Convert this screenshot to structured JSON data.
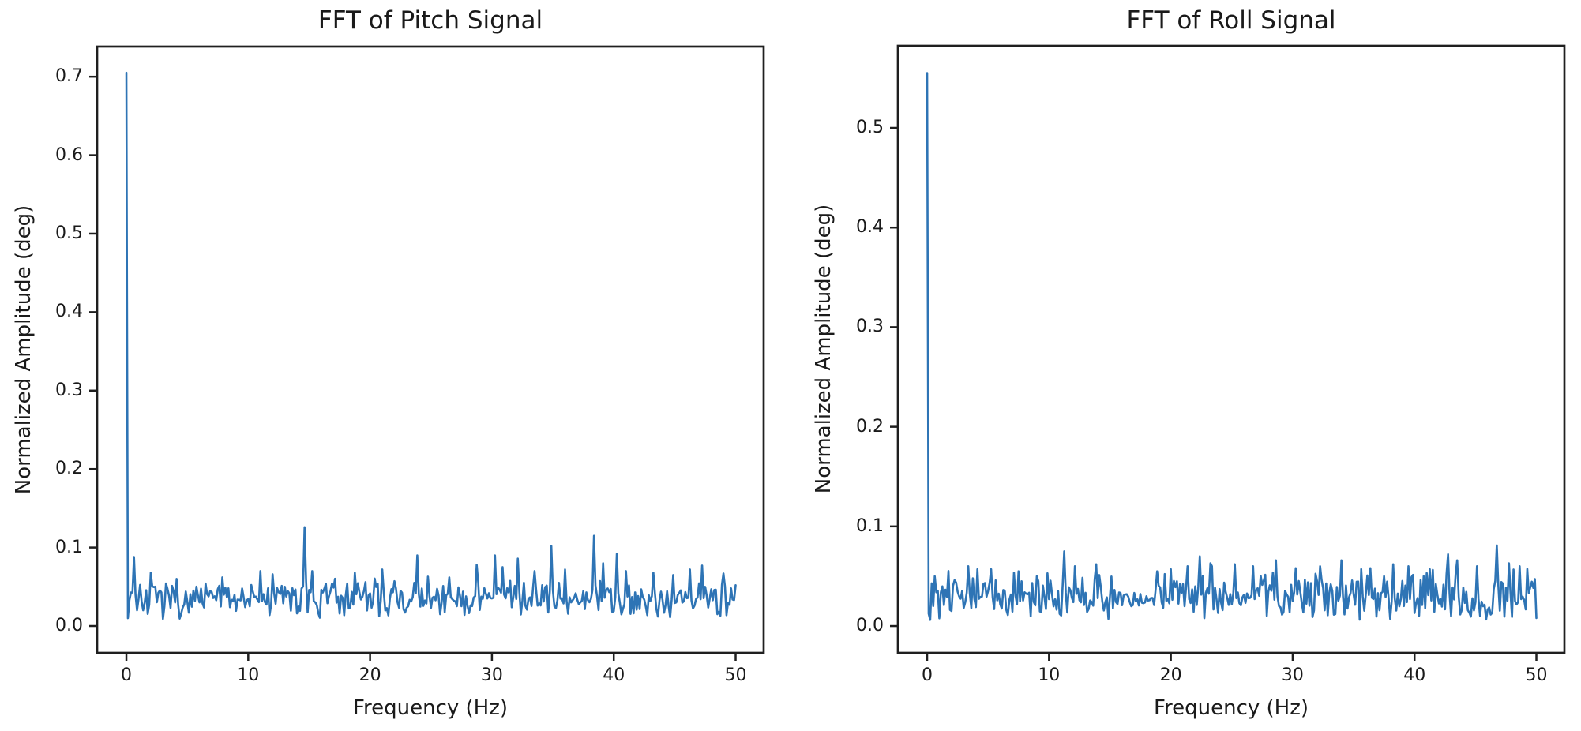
{
  "figure": {
    "background_color": "#ffffff",
    "text_color": "#1a1a1a",
    "spine_color": "#1f1f1f",
    "line_color": "#2e74b5"
  },
  "chart_data": [
    {
      "type": "line",
      "name": "pitch",
      "title": "FFT of Pitch Signal",
      "xlabel": "Frequency (Hz)",
      "ylabel": "Normalized Amplitude (deg)",
      "x_ticks": [
        0,
        10,
        20,
        30,
        40,
        50
      ],
      "x_tick_labels": [
        "0",
        "10",
        "20",
        "30",
        "40",
        "50"
      ],
      "y_ticks": [
        0.0,
        0.1,
        0.2,
        0.3,
        0.4,
        0.5,
        0.6,
        0.7
      ],
      "y_tick_labels": [
        "0.0",
        "0.1",
        "0.2",
        "0.3",
        "0.4",
        "0.5",
        "0.6",
        "0.7"
      ],
      "xlim": [
        -2.4,
        52.3
      ],
      "ylim": [
        -0.0342,
        0.7384
      ],
      "grid": false,
      "legend": null,
      "spike": {
        "freq": 0,
        "amplitude": 0.705
      },
      "noise": {
        "seed": 7,
        "step_hz": 0.125,
        "fmax": 50,
        "floor_min": 0.008,
        "floor_max": 0.062,
        "mean": 0.034
      },
      "peaks": [
        [
          0.65,
          0.088
        ],
        [
          2.0,
          0.068
        ],
        [
          4.1,
          0.06
        ],
        [
          7.9,
          0.062
        ],
        [
          11.0,
          0.07
        ],
        [
          12.0,
          0.066
        ],
        [
          14.6,
          0.126
        ],
        [
          15.3,
          0.07
        ],
        [
          18.8,
          0.068
        ],
        [
          21.0,
          0.072
        ],
        [
          23.9,
          0.09
        ],
        [
          24.8,
          0.063
        ],
        [
          26.5,
          0.062
        ],
        [
          28.8,
          0.078
        ],
        [
          30.3,
          0.09
        ],
        [
          30.9,
          0.075
        ],
        [
          32.1,
          0.086
        ],
        [
          33.5,
          0.07
        ],
        [
          34.9,
          0.102
        ],
        [
          36.0,
          0.072
        ],
        [
          38.4,
          0.115
        ],
        [
          39.1,
          0.08
        ],
        [
          40.2,
          0.092
        ],
        [
          41.0,
          0.07
        ],
        [
          43.3,
          0.068
        ],
        [
          44.9,
          0.065
        ],
        [
          46.2,
          0.072
        ],
        [
          47.2,
          0.077
        ],
        [
          49.0,
          0.067
        ]
      ],
      "flat_regions": [],
      "end_value": 0.052
    },
    {
      "type": "line",
      "name": "roll",
      "title": "FFT of Roll Signal",
      "xlabel": "Frequency (Hz)",
      "ylabel": "Normalized Amplitude (deg)",
      "x_ticks": [
        0,
        10,
        20,
        30,
        40,
        50
      ],
      "x_tick_labels": [
        "0",
        "10",
        "20",
        "30",
        "40",
        "50"
      ],
      "y_ticks": [
        0.0,
        0.1,
        0.2,
        0.3,
        0.4,
        0.5
      ],
      "y_tick_labels": [
        "0.0",
        "0.1",
        "0.2",
        "0.3",
        "0.4",
        "0.5"
      ],
      "xlim": [
        -2.4,
        52.3
      ],
      "ylim": [
        -0.0269,
        0.5824
      ],
      "grid": false,
      "legend": null,
      "spike": {
        "freq": 0,
        "amplitude": 0.555
      },
      "noise": {
        "seed": 13,
        "step_hz": 0.125,
        "fmax": 50,
        "floor_min": 0.005,
        "floor_max": 0.058,
        "mean": 0.031
      },
      "peaks": [
        [
          0.6,
          0.05
        ],
        [
          3.4,
          0.06
        ],
        [
          5.2,
          0.057
        ],
        [
          7.5,
          0.055
        ],
        [
          9.0,
          0.05
        ],
        [
          11.3,
          0.075
        ],
        [
          12.1,
          0.06
        ],
        [
          13.9,
          0.062
        ],
        [
          18.9,
          0.055
        ],
        [
          20.0,
          0.057
        ],
        [
          21.4,
          0.06
        ],
        [
          22.4,
          0.07
        ],
        [
          23.2,
          0.063
        ],
        [
          25.3,
          0.062
        ],
        [
          26.8,
          0.06
        ],
        [
          28.6,
          0.066
        ],
        [
          30.2,
          0.058
        ],
        [
          32.2,
          0.06
        ],
        [
          34.0,
          0.066
        ],
        [
          36.4,
          0.058
        ],
        [
          38.2,
          0.062
        ],
        [
          39.5,
          0.06
        ],
        [
          41.2,
          0.057
        ],
        [
          42.8,
          0.072
        ],
        [
          43.5,
          0.066
        ],
        [
          45.1,
          0.06
        ],
        [
          46.7,
          0.081
        ],
        [
          47.8,
          0.063
        ],
        [
          48.6,
          0.06
        ]
      ],
      "flat_regions": [
        [
          15.4,
          18.4
        ],
        [
          24.6,
          26.4
        ]
      ],
      "end_value": 0.008
    }
  ]
}
